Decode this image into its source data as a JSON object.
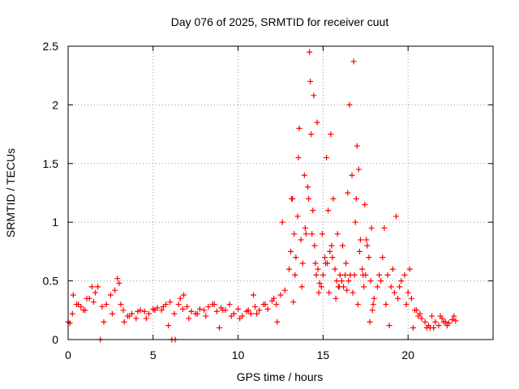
{
  "chart_data": {
    "type": "scatter",
    "title": "Day 076 of 2025, SRMTID for receiver cuut",
    "xlabel": "GPS time / hours",
    "ylabel": "SRMTID / TECUs",
    "xlim": [
      0,
      25
    ],
    "ylim": [
      0,
      2.5
    ],
    "xticks": [
      0,
      5,
      10,
      15,
      20
    ],
    "xtick_labels": [
      "0",
      "5",
      "10",
      "15",
      "20"
    ],
    "yticks": [
      0,
      0.5,
      1,
      1.5,
      2,
      2.5
    ],
    "ytick_labels": [
      "0",
      "0.5",
      "1",
      "1.5",
      "2",
      "2.5"
    ],
    "grid": true,
    "marker": "+",
    "series": [
      {
        "name": "SRMTID",
        "color": "#ff0000",
        "x": [
          0.0,
          0.25,
          0.5,
          0.75,
          1.0,
          1.25,
          1.5,
          1.75,
          2.0,
          2.25,
          2.5,
          2.75,
          3.0,
          3.25,
          3.5,
          3.75,
          4.0,
          4.25,
          4.5,
          4.75,
          5.0,
          5.25,
          5.5,
          5.75,
          6.0,
          6.25,
          6.5,
          6.75,
          7.0,
          7.25,
          7.5,
          7.75,
          8.0,
          8.25,
          8.5,
          8.75,
          9.0,
          9.25,
          9.5,
          9.75,
          10.0,
          10.25,
          10.5,
          10.75,
          11.0,
          11.25,
          11.5,
          11.75,
          12.0,
          12.25,
          12.5,
          12.75,
          13.0,
          13.1,
          13.2,
          13.3,
          13.4,
          13.5,
          13.6,
          13.7,
          13.8,
          13.9,
          14.0,
          14.1,
          14.2,
          14.3,
          14.4,
          14.5,
          14.6,
          14.7,
          14.8,
          14.9,
          15.0,
          15.1,
          15.2,
          15.3,
          15.4,
          15.5,
          15.6,
          15.7,
          15.8,
          15.9,
          16.0,
          16.1,
          16.2,
          16.3,
          16.4,
          16.5,
          16.6,
          16.7,
          16.8,
          16.9,
          17.0,
          17.1,
          17.2,
          17.3,
          17.4,
          17.5,
          17.6,
          17.7,
          17.8,
          17.9,
          18.0,
          18.2,
          18.4,
          18.6,
          18.8,
          19.0,
          19.2,
          19.4,
          19.6,
          19.8,
          20.0,
          20.2,
          20.4,
          20.6,
          20.8,
          21.0,
          21.2,
          21.4,
          21.6,
          21.8,
          22.0,
          22.2,
          22.4,
          22.6,
          22.8,
          1.9,
          6.1,
          6.3,
          0.1,
          0.6,
          1.1,
          1.6,
          2.1,
          2.6,
          3.1,
          3.6,
          4.1,
          4.6,
          5.1,
          5.6,
          6.6,
          7.1,
          7.6,
          8.1,
          8.6,
          9.1,
          9.6,
          10.1,
          10.6,
          11.1,
          11.6,
          12.1,
          12.6,
          13.15,
          13.35,
          13.55,
          13.75,
          13.95,
          14.15,
          14.35,
          14.55,
          14.75,
          14.95,
          15.15,
          15.35,
          15.55,
          15.75,
          15.95,
          16.15,
          16.35,
          16.55,
          16.75,
          16.95,
          17.15,
          17.35,
          17.55,
          17.75,
          17.95,
          18.3,
          18.7,
          19.1,
          19.5,
          19.9,
          20.3,
          20.7,
          21.1,
          21.5,
          21.9,
          22.3,
          22.7,
          0.3,
          0.9,
          1.4,
          2.9,
          3.3,
          5.9,
          6.8,
          8.9,
          10.9,
          12.3,
          13.25,
          14.25,
          14.45,
          14.65,
          15.25,
          15.45,
          15.85,
          16.45,
          16.85,
          17.05,
          17.45,
          17.85,
          18.5,
          18.9,
          19.3,
          20.1,
          20.5,
          21.3,
          22.1
        ],
        "y": [
          0.15,
          0.22,
          0.3,
          0.28,
          0.25,
          0.35,
          0.32,
          0.45,
          0.28,
          0.3,
          0.38,
          0.42,
          0.48,
          0.25,
          0.2,
          0.22,
          0.18,
          0.25,
          0.24,
          0.22,
          0.26,
          0.27,
          0.25,
          0.3,
          0.32,
          0.22,
          0.3,
          0.26,
          0.28,
          0.24,
          0.22,
          0.26,
          0.25,
          0.28,
          0.3,
          0.24,
          0.27,
          0.25,
          0.3,
          0.22,
          0.26,
          0.2,
          0.24,
          0.22,
          0.28,
          0.25,
          0.3,
          0.26,
          0.33,
          0.3,
          0.38,
          0.42,
          0.6,
          0.75,
          1.2,
          0.9,
          0.7,
          1.05,
          1.8,
          0.85,
          0.65,
          1.4,
          0.9,
          1.3,
          2.45,
          1.75,
          1.1,
          0.8,
          0.55,
          0.6,
          0.48,
          0.45,
          0.55,
          0.7,
          1.55,
          1.1,
          0.75,
          0.8,
          1.2,
          0.6,
          0.5,
          0.45,
          0.55,
          0.5,
          0.45,
          0.55,
          0.42,
          0.5,
          0.55,
          1.4,
          2.37,
          1.0,
          1.65,
          1.45,
          0.85,
          0.6,
          0.45,
          0.55,
          0.8,
          0.7,
          0.5,
          0.25,
          0.35,
          0.45,
          0.5,
          0.95,
          0.55,
          0.45,
          0.4,
          0.35,
          0.5,
          0.55,
          0.4,
          0.35,
          0.25,
          0.2,
          0.18,
          0.15,
          0.12,
          0.2,
          0.15,
          0.12,
          0.18,
          0.15,
          0.14,
          0.17,
          0.16,
          0.0,
          0.0,
          0.0,
          0.14,
          0.3,
          0.35,
          0.4,
          0.15,
          0.22,
          0.3,
          0.2,
          0.24,
          0.18,
          0.25,
          0.28,
          0.35,
          0.18,
          0.22,
          0.2,
          0.3,
          0.25,
          0.2,
          0.18,
          0.25,
          0.22,
          0.3,
          0.35,
          1.0,
          1.2,
          0.55,
          1.55,
          0.45,
          0.95,
          1.2,
          0.9,
          0.65,
          0.4,
          0.9,
          0.65,
          0.4,
          0.7,
          0.35,
          0.45,
          0.8,
          0.65,
          2.0,
          0.4,
          1.2,
          0.75,
          0.55,
          0.85,
          0.15,
          0.3,
          0.55,
          0.3,
          0.6,
          0.45,
          0.3,
          0.1,
          0.22,
          0.1,
          0.1,
          0.2,
          0.12,
          0.2,
          0.38,
          0.25,
          0.45,
          0.52,
          0.15,
          0.12,
          0.38,
          0.1,
          0.38,
          0.15,
          0.32,
          2.2,
          2.08,
          1.85,
          0.65,
          1.75,
          0.9,
          1.25,
          0.55,
          0.3,
          1.15,
          0.95,
          0.7,
          0.12,
          1.05,
          0.6,
          0.25,
          0.1,
          0.15
        ]
      }
    ]
  }
}
